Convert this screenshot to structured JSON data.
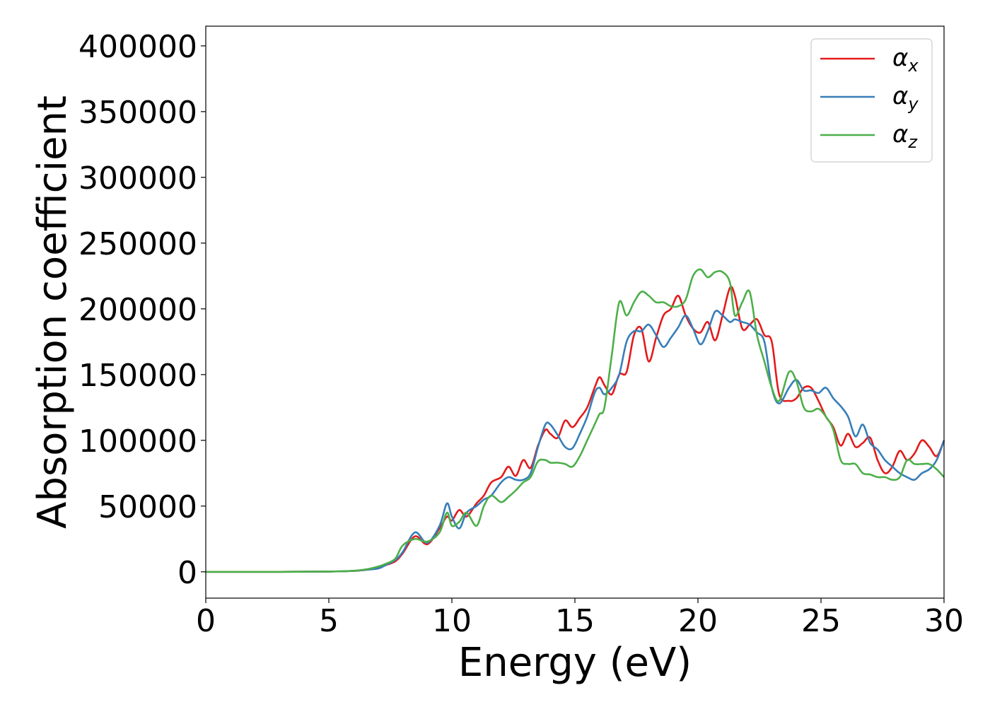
{
  "chart_data": {
    "type": "line",
    "xlabel": "Energy (eV)",
    "ylabel": "Absorption coefficient",
    "xlim": [
      0,
      30
    ],
    "ylim": [
      -20000,
      415000
    ],
    "xticks": [
      0,
      5,
      10,
      15,
      20,
      25,
      30
    ],
    "yticks": [
      0,
      50000,
      100000,
      150000,
      200000,
      250000,
      300000,
      350000,
      400000
    ],
    "grid": false,
    "legend_position": "top-right",
    "series": [
      {
        "name": "αx",
        "symbol": "α",
        "subscript": "x",
        "color": "#e41a1c",
        "x": [
          0,
          3,
          5,
          6,
          6.5,
          7,
          7.3,
          7.7,
          8.0,
          8.5,
          9.0,
          9.5,
          9.8,
          10.0,
          10.3,
          10.6,
          11.0,
          11.3,
          11.6,
          12.0,
          12.3,
          12.6,
          12.9,
          13.2,
          13.5,
          13.8,
          14.0,
          14.3,
          14.6,
          14.9,
          15.2,
          15.5,
          15.8,
          16.0,
          16.2,
          16.5,
          16.8,
          17.1,
          17.4,
          17.7,
          18.0,
          18.3,
          18.6,
          18.9,
          19.2,
          19.5,
          19.8,
          20.1,
          20.4,
          20.7,
          21.0,
          21.3,
          21.5,
          21.8,
          22.1,
          22.4,
          22.7,
          23.0,
          23.3,
          23.7,
          24.0,
          24.3,
          24.6,
          24.9,
          25.2,
          25.5,
          25.8,
          26.1,
          26.4,
          26.7,
          27.0,
          27.3,
          27.6,
          27.9,
          28.2,
          28.5,
          28.8,
          29.1,
          29.4,
          29.7,
          30.0
        ],
        "y": [
          0,
          0,
          200,
          700,
          1500,
          3000,
          5000,
          8000,
          14000,
          27000,
          21000,
          33000,
          42000,
          39000,
          47000,
          42000,
          52000,
          58000,
          68000,
          72000,
          80000,
          73000,
          85000,
          79000,
          96000,
          108000,
          105000,
          102000,
          115000,
          110000,
          117000,
          125000,
          140000,
          148000,
          142000,
          135000,
          150000,
          152000,
          180000,
          185000,
          160000,
          178000,
          195000,
          200000,
          210000,
          195000,
          185000,
          182000,
          190000,
          176000,
          195000,
          216000,
          210000,
          185000,
          188000,
          192000,
          180000,
          175000,
          135000,
          130000,
          132000,
          140000,
          140000,
          130000,
          118000,
          110000,
          96000,
          105000,
          95000,
          98000,
          102000,
          85000,
          75000,
          80000,
          92000,
          85000,
          90000,
          100000,
          95000,
          88000,
          100000
        ]
      },
      {
        "name": "αy",
        "symbol": "α",
        "subscript": "y",
        "color": "#377eb8",
        "x": [
          0,
          3,
          5,
          6,
          6.5,
          7,
          7.3,
          7.7,
          8.0,
          8.5,
          9.0,
          9.5,
          9.8,
          10.0,
          10.3,
          10.6,
          11.0,
          11.3,
          11.6,
          12.0,
          12.3,
          12.6,
          12.9,
          13.2,
          13.5,
          13.8,
          14.0,
          14.3,
          14.6,
          14.9,
          15.2,
          15.5,
          15.8,
          16.0,
          16.2,
          16.5,
          16.8,
          17.1,
          17.4,
          17.7,
          18.0,
          18.3,
          18.6,
          18.9,
          19.2,
          19.5,
          19.8,
          20.1,
          20.4,
          20.7,
          21.0,
          21.3,
          21.5,
          21.8,
          22.1,
          22.4,
          22.7,
          23.0,
          23.3,
          23.7,
          24.0,
          24.3,
          24.6,
          24.9,
          25.2,
          25.5,
          25.8,
          26.1,
          26.4,
          26.7,
          27.0,
          27.3,
          27.6,
          27.9,
          28.2,
          28.5,
          28.8,
          29.1,
          29.4,
          29.7,
          30.0
        ],
        "y": [
          0,
          0,
          200,
          700,
          1500,
          2500,
          5000,
          9000,
          15000,
          30000,
          22000,
          35000,
          52000,
          42000,
          33000,
          45000,
          50000,
          55000,
          58000,
          68000,
          72000,
          70000,
          70000,
          75000,
          95000,
          112000,
          112000,
          104000,
          95000,
          94000,
          105000,
          118000,
          136000,
          140000,
          135000,
          140000,
          150000,
          175000,
          183000,
          183000,
          188000,
          180000,
          171000,
          178000,
          186000,
          195000,
          185000,
          173000,
          183000,
          198000,
          195000,
          190000,
          192000,
          190000,
          188000,
          182000,
          175000,
          140000,
          128000,
          140000,
          146000,
          138000,
          138000,
          136000,
          140000,
          132000,
          126000,
          118000,
          103000,
          112000,
          98000,
          93000,
          85000,
          80000,
          75000,
          72000,
          70000,
          75000,
          78000,
          85000,
          100000
        ]
      },
      {
        "name": "αz",
        "symbol": "α",
        "subscript": "z",
        "color": "#4daf4a",
        "x": [
          0,
          3,
          5,
          6,
          6.5,
          7,
          7.3,
          7.7,
          8.0,
          8.5,
          9.0,
          9.5,
          9.8,
          10.0,
          10.3,
          10.6,
          11.0,
          11.3,
          11.6,
          12.0,
          12.3,
          12.6,
          12.9,
          13.2,
          13.5,
          13.8,
          14.0,
          14.3,
          14.6,
          14.9,
          15.2,
          15.5,
          15.8,
          16.0,
          16.2,
          16.5,
          16.8,
          17.1,
          17.4,
          17.7,
          18.0,
          18.3,
          18.6,
          18.9,
          19.2,
          19.5,
          19.8,
          20.1,
          20.4,
          20.7,
          21.0,
          21.3,
          21.5,
          21.8,
          22.1,
          22.4,
          22.7,
          23.0,
          23.3,
          23.7,
          24.0,
          24.3,
          24.6,
          24.9,
          25.2,
          25.5,
          25.8,
          26.1,
          26.4,
          26.7,
          27.0,
          27.3,
          27.6,
          27.9,
          28.2,
          28.5,
          28.8,
          29.1,
          29.4,
          29.7,
          30.0
        ],
        "y": [
          0,
          0,
          200,
          800,
          1800,
          4000,
          6000,
          10000,
          20000,
          25000,
          23000,
          30000,
          45000,
          35000,
          38000,
          45000,
          35000,
          50000,
          58000,
          53000,
          57000,
          62000,
          68000,
          72000,
          84000,
          85000,
          83000,
          83000,
          82000,
          80000,
          88000,
          100000,
          112000,
          120000,
          125000,
          165000,
          205000,
          195000,
          205000,
          213000,
          210000,
          205000,
          205000,
          202000,
          202000,
          207000,
          225000,
          230000,
          224000,
          228000,
          228000,
          220000,
          195000,
          205000,
          213000,
          180000,
          160000,
          140000,
          130000,
          152000,
          145000,
          125000,
          122000,
          124000,
          118000,
          108000,
          85000,
          82000,
          82000,
          75000,
          74000,
          72000,
          72000,
          70000,
          72000,
          85000,
          82000,
          82000,
          82000,
          78000,
          72000
        ]
      }
    ]
  }
}
